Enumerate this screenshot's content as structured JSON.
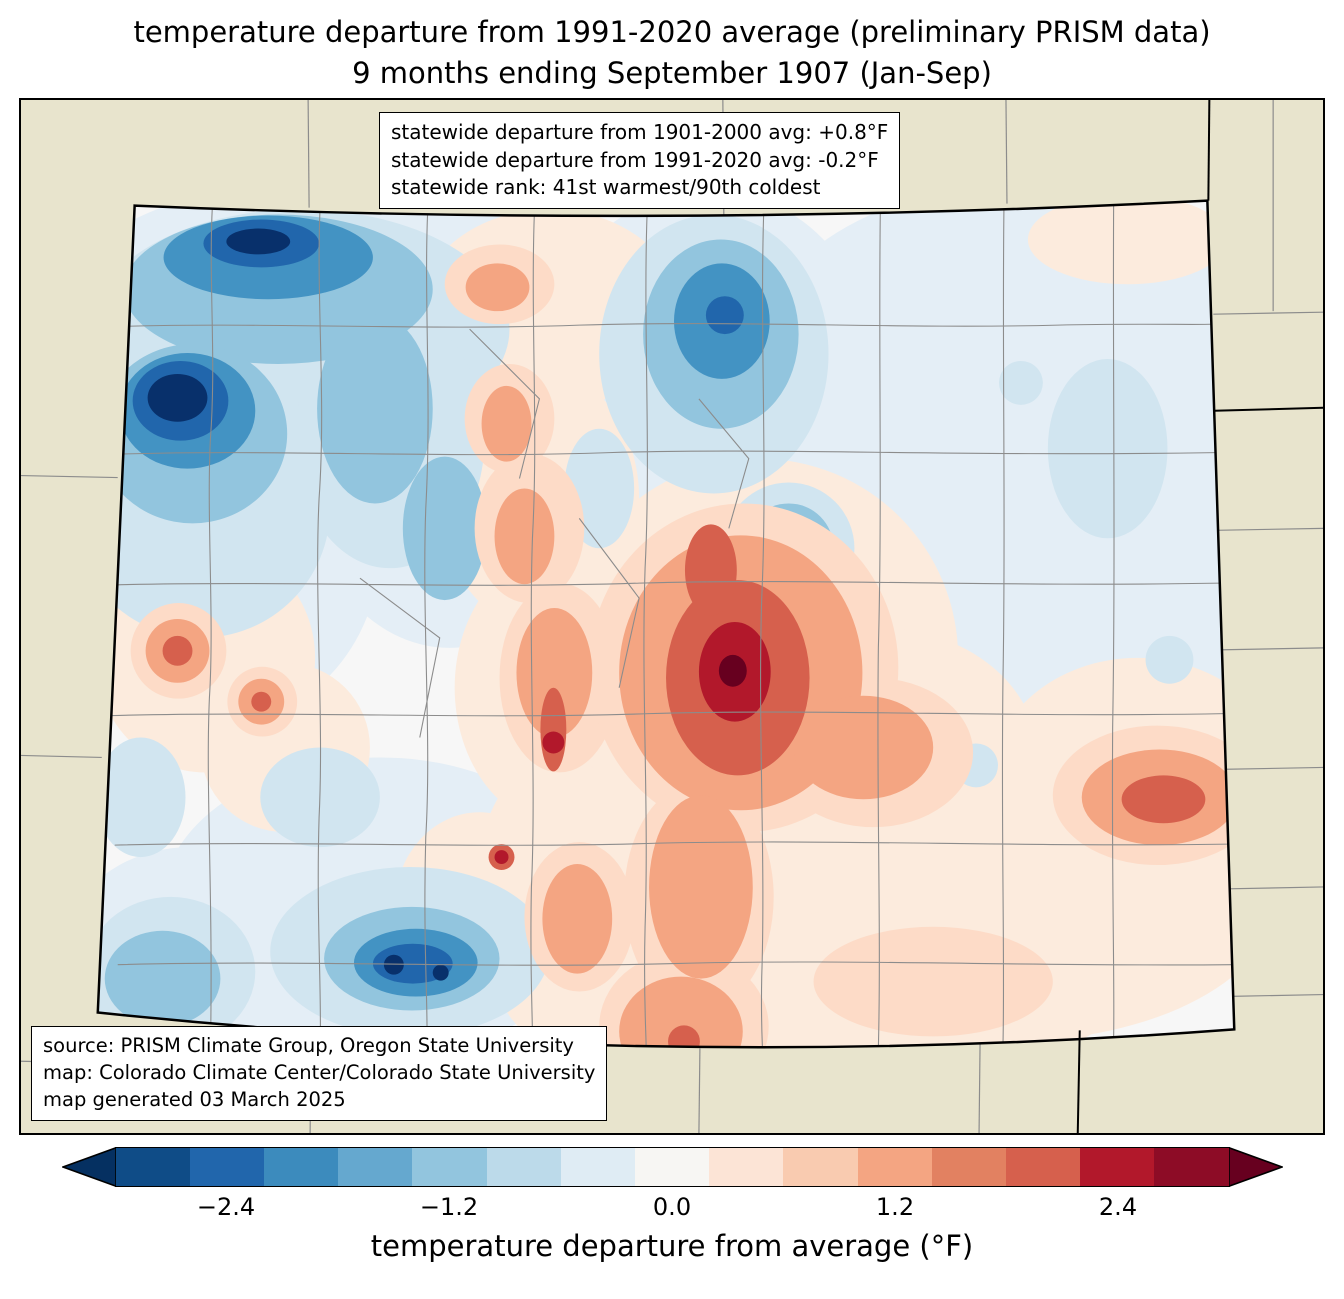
{
  "title": {
    "line1": "temperature departure from 1991-2020 average (preliminary PRISM data)",
    "line2": "9 months ending September 1907 (Jan-Sep)"
  },
  "stats_box": {
    "lines": [
      "statewide departure from 1901-2000 avg: +0.8°F",
      "statewide departure from 1991-2020 avg: -0.2°F",
      "statewide rank: 41st warmest/90th coldest"
    ]
  },
  "source_box": {
    "lines": [
      "source: PRISM Climate Group, Oregon State University",
      "map: Colorado Climate Center/Colorado State University",
      "map generated 03 March 2025"
    ]
  },
  "colorbar": {
    "label": "temperature departure from average (°F)",
    "ticks": [
      {
        "label": "−2.4",
        "position": 0.1
      },
      {
        "label": "−1.2",
        "position": 0.3
      },
      {
        "label": "0.0",
        "position": 0.5
      },
      {
        "label": "1.2",
        "position": 0.7
      },
      {
        "label": "2.4",
        "position": 0.9
      }
    ],
    "value_range": [
      -3.0,
      3.0
    ],
    "segment_colors": [
      "#0f4c87",
      "#2166ac",
      "#3c8bbd",
      "#65a8cf",
      "#92c5de",
      "#bcdaea",
      "#dfecf4",
      "#f7f6f3",
      "#fce4d6",
      "#f9cbb0",
      "#f4a582",
      "#e28161",
      "#d6604d",
      "#b2182b",
      "#8d0c26"
    ],
    "left_arrow_color": "#053061",
    "right_arrow_color": "#67001f"
  },
  "map": {
    "outside_fill": "#e8e4cd",
    "neutral": "#f7f7f7",
    "county_line": "#8c8c8c",
    "state_border": "#000000",
    "neighbor_border": "#000000",
    "palette": {
      "blue0": "#e4eef6",
      "blue1": "#d1e5f0",
      "blue2": "#92c5de",
      "blue3": "#4393c3",
      "blue4": "#2166ac",
      "blue5": "#08306b",
      "red0": "#fcebdd",
      "red1": "#fddbc7",
      "red2": "#f4a582",
      "red3": "#d6604d",
      "red4": "#b2182b",
      "red5": "#67001f"
    }
  }
}
